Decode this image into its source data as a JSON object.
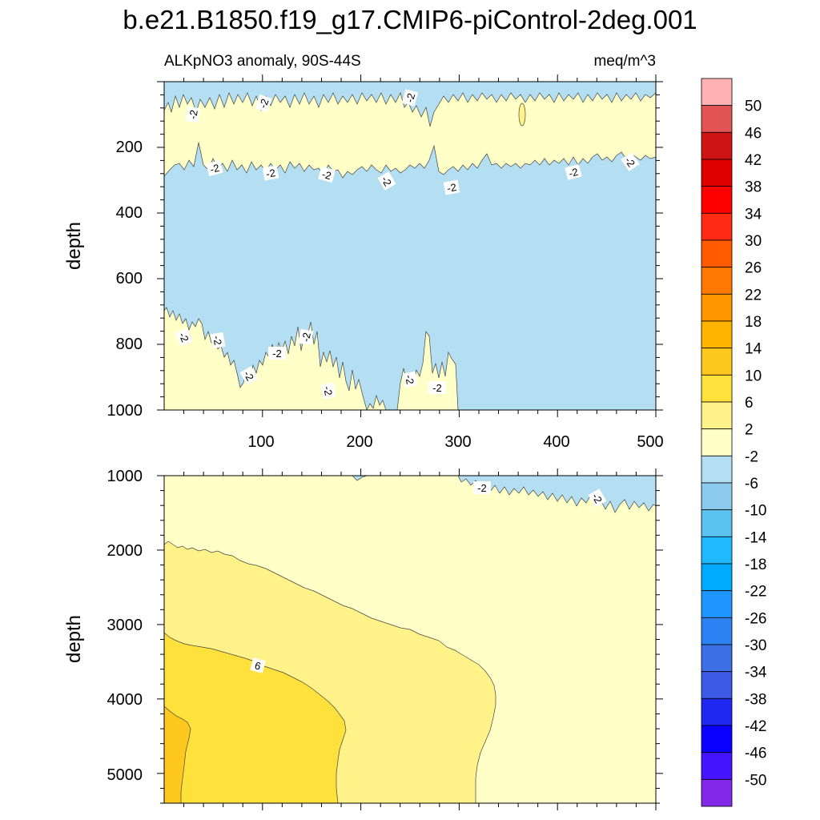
{
  "chart_data": {
    "type": "contour",
    "title": "b.e21.B1850.f19_g17.CMIP6-piControl-2deg.001",
    "variable_label": "ALKpNO3 anomaly, 90S-44S",
    "units": "meq/m^3",
    "colorbar": {
      "levels": [
        "50",
        "46",
        "42",
        "38",
        "34",
        "30",
        "26",
        "22",
        "18",
        "14",
        "10",
        "6",
        "2",
        "-2",
        "-6",
        "-10",
        "-14",
        "-18",
        "-22",
        "-26",
        "-30",
        "-34",
        "-38",
        "-42",
        "-46",
        "-50"
      ],
      "colors": [
        "#ffb2b2",
        "#e35555",
        "#cf1414",
        "#e00000",
        "#ff0000",
        "#ff2a12",
        "#ff5a00",
        "#ff7800",
        "#ff9600",
        "#ffb400",
        "#ffc81e",
        "#ffe13c",
        "#fff288",
        "#ffffc8",
        "#b4def2",
        "#8ccbee",
        "#5ac3f2",
        "#1eb9ff",
        "#00aaff",
        "#1e96ff",
        "#2c82f2",
        "#3c6ee6",
        "#3c5ae6",
        "#1e28f0",
        "#0a00ff",
        "#4614ff",
        "#8228e6"
      ]
    },
    "panels": [
      {
        "name": "upper",
        "xlim": [
          0,
          500
        ],
        "ylim": [
          1000,
          0
        ],
        "ylabel": "depth",
        "xticks": [
          "100",
          "200",
          "300",
          "400",
          "500"
        ],
        "yticks": [
          "200",
          "400",
          "600",
          "800",
          "1000"
        ],
        "contour_labels": [
          "-2",
          "-2",
          "-2",
          "-2",
          "-2",
          "-2",
          "-2",
          "-2",
          "-2",
          "-2",
          "-2",
          "-2",
          "-2",
          "-2",
          "-2",
          "-2",
          "-2",
          "-2",
          "-2"
        ]
      },
      {
        "name": "lower",
        "xlim": [
          0,
          500
        ],
        "ylim": [
          5400,
          1000
        ],
        "ylabel": "depth",
        "yticks": [
          "1000",
          "2000",
          "3000",
          "4000",
          "5000"
        ],
        "contour_labels": [
          "-2",
          "-2",
          "6"
        ]
      }
    ]
  }
}
